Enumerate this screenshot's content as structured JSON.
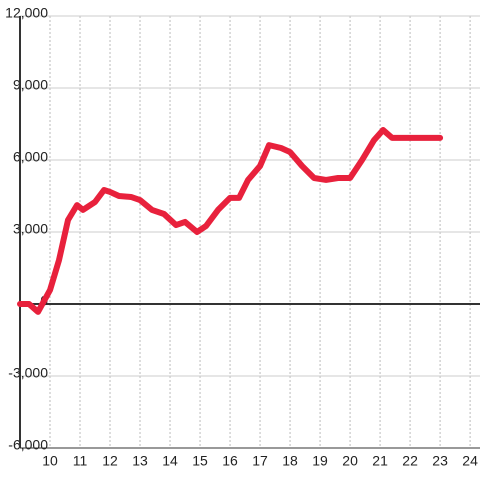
{
  "chart_data": {
    "type": "line",
    "x": [
      9.0,
      9.3,
      9.6,
      10.0,
      10.3,
      10.6,
      10.9,
      11.1,
      11.5,
      11.8,
      12.0,
      12.3,
      12.7,
      13.0,
      13.4,
      13.8,
      14.2,
      14.5,
      14.9,
      15.2,
      15.6,
      16.0,
      16.3,
      16.6,
      17.0,
      17.3,
      17.7,
      18.0,
      18.4,
      18.8,
      19.2,
      19.6,
      20.0,
      20.4,
      20.8,
      21.1,
      21.4,
      21.8,
      23.0
    ],
    "series": [
      {
        "color": "#e8213c",
        "values": [
          0,
          0,
          -330,
          580,
          1830,
          3500,
          4120,
          3920,
          4250,
          4750,
          4670,
          4500,
          4460,
          4330,
          3920,
          3750,
          3290,
          3420,
          3000,
          3250,
          3920,
          4420,
          4420,
          5170,
          5750,
          6620,
          6500,
          6330,
          5750,
          5250,
          5170,
          5250,
          5250,
          6000,
          6830,
          7250,
          6920,
          6920,
          6920
        ]
      }
    ],
    "xlim": [
      9,
      24.33
    ],
    "ylim": [
      -6000,
      12000
    ],
    "xticks": [
      10,
      11,
      12,
      13,
      14,
      15,
      16,
      17,
      18,
      19,
      20,
      21,
      22,
      23,
      24
    ],
    "yticks": [
      {
        "value": -6000,
        "label": "-6,000"
      },
      {
        "value": -3000,
        "label": "-3,000"
      },
      0,
      {
        "value": 3000,
        "label": "3,000"
      },
      {
        "value": 6000,
        "label": "6,000"
      },
      {
        "value": 9000,
        "label": "9,000"
      },
      {
        "value": 12000,
        "label": "12,000"
      }
    ],
    "grid": true
  }
}
